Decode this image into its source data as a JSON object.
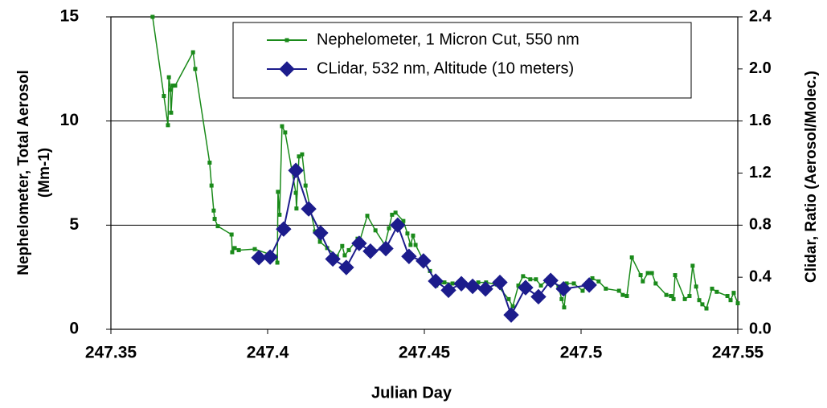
{
  "chart_data": {
    "type": "line",
    "xlabel": "Julian Day",
    "ylabel": [
      "Nephelometer, Total Aerosol",
      "(Mm-1)"
    ],
    "y2label": "Clidar, Ratio (Aerosol/Molec.)",
    "xlim": [
      247.35,
      247.55
    ],
    "xticks": [
      247.35,
      247.4,
      247.45,
      247.5,
      247.55
    ],
    "ylim": [
      0,
      15
    ],
    "yticks": [
      0,
      5,
      10,
      15
    ],
    "y2lim": [
      0,
      2.4
    ],
    "y2ticks": [
      {
        "value": 0,
        "label": "0.0"
      },
      {
        "value": 0.4,
        "label": "0.4"
      },
      {
        "value": 0.8,
        "label": "0.8"
      },
      {
        "value": 1.2,
        "label": "1.2"
      },
      {
        "value": 1.6,
        "label": "1.6"
      },
      {
        "value": 2.0,
        "label": "2.0"
      },
      {
        "value": 2.4,
        "label": "2.4"
      }
    ],
    "grid": true,
    "legend": "top-right",
    "series": [
      {
        "name": "Nephelometer, 1 Micron Cut, 550 nm",
        "color": "#1a8a1a",
        "marker": "square",
        "x": [
          247.3633,
          247.3669,
          247.3682,
          247.3685,
          247.369,
          247.3692,
          247.3697,
          247.3705,
          247.3762,
          247.3769,
          247.3815,
          247.3821,
          247.3828,
          247.3831,
          247.3841,
          247.3885,
          247.3887,
          247.3895,
          247.3908,
          247.3959,
          247.4026,
          247.4031,
          247.4033,
          247.4038,
          247.4046,
          247.4056,
          247.409,
          247.4092,
          247.41,
          247.411,
          247.4121,
          247.4151,
          247.4167,
          247.419,
          247.4221,
          247.4238,
          247.4246,
          247.4259,
          247.4287,
          247.4295,
          247.4318,
          247.4344,
          247.4374,
          247.4387,
          247.4397,
          247.4408,
          247.4433,
          247.4446,
          247.4456,
          247.4464,
          247.4472,
          247.4497,
          247.4518,
          247.4538,
          247.4564,
          247.459,
          247.4621,
          247.4646,
          247.4672,
          247.4697,
          247.4731,
          247.4769,
          247.4782,
          247.48,
          247.4815,
          247.4838,
          247.4856,
          247.4872,
          247.489,
          247.4913,
          247.4928,
          247.4938,
          247.4946,
          247.4954,
          247.4977,
          247.5005,
          247.5018,
          247.5036,
          247.5056,
          247.5079,
          247.5121,
          247.5133,
          247.5146,
          247.5162,
          247.519,
          247.5197,
          247.5213,
          247.5226,
          247.5238,
          247.5272,
          247.5287,
          247.5295,
          247.53,
          247.5331,
          247.5346,
          247.5356,
          247.5367,
          247.5377,
          247.5387,
          247.54,
          247.5418,
          247.5433,
          247.5467,
          247.5477,
          247.5487,
          247.55
        ],
        "values": [
          15.0,
          11.2,
          9.8,
          12.1,
          11.5,
          10.4,
          11.7,
          11.7,
          13.3,
          12.5,
          8.0,
          6.9,
          5.7,
          5.3,
          4.95,
          4.55,
          3.7,
          3.9,
          3.8,
          3.85,
          3.5,
          3.2,
          6.6,
          5.5,
          9.75,
          9.45,
          6.55,
          5.8,
          8.3,
          8.4,
          6.9,
          4.7,
          4.2,
          3.9,
          3.5,
          4.0,
          3.55,
          3.8,
          4.35,
          4.3,
          5.45,
          4.75,
          4.05,
          4.85,
          5.5,
          5.6,
          5.2,
          4.6,
          4.05,
          4.5,
          4.05,
          3.3,
          2.8,
          2.1,
          2.25,
          2.2,
          2.25,
          2.1,
          2.25,
          2.25,
          2.15,
          1.45,
          1.1,
          2.1,
          2.55,
          2.4,
          2.4,
          2.1,
          2.35,
          2.25,
          2.05,
          1.45,
          1.05,
          2.2,
          2.2,
          1.85,
          2.1,
          2.45,
          2.3,
          1.95,
          1.85,
          1.65,
          1.6,
          3.45,
          2.6,
          2.3,
          2.7,
          2.7,
          2.2,
          1.65,
          1.6,
          1.45,
          2.6,
          1.45,
          1.6,
          3.05,
          2.05,
          1.4,
          1.2,
          1.0,
          1.95,
          1.8,
          1.6,
          1.4,
          1.75,
          1.25
        ]
      },
      {
        "name": "CLidar, 532 nm, Altitude (10 meters)",
        "color": "#1c1c8c",
        "marker": "diamond",
        "axis": "y2",
        "x": [
          247.3972,
          247.4008,
          247.4051,
          247.409,
          247.4131,
          247.4169,
          247.4208,
          247.4251,
          247.4292,
          247.4328,
          247.4377,
          247.4415,
          247.4451,
          247.4497,
          247.4536,
          247.4577,
          247.4618,
          247.4654,
          247.4695,
          247.4741,
          247.4777,
          247.4823,
          247.4864,
          247.4903,
          247.4944,
          247.5026
        ],
        "values": [
          0.55,
          0.555,
          0.77,
          1.22,
          0.925,
          0.74,
          0.54,
          0.475,
          0.66,
          0.6,
          0.62,
          0.8,
          0.56,
          0.525,
          0.37,
          0.3,
          0.35,
          0.33,
          0.31,
          0.36,
          0.11,
          0.32,
          0.25,
          0.375,
          0.31,
          0.34
        ]
      }
    ]
  }
}
